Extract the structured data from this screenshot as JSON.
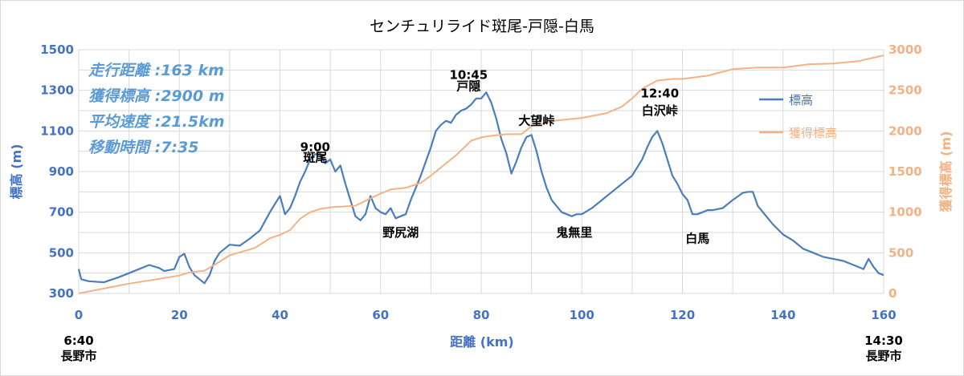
{
  "chart_data": {
    "type": "line",
    "title": "センチュリライド斑尾-戸隠-白馬",
    "xlabel": "距離 (km)",
    "ylabel_left": "標高 (m)",
    "ylabel_right": "獲得標高 (m)",
    "xlim": [
      0,
      160
    ],
    "ylim_left": [
      300,
      1500
    ],
    "ylim_right": [
      0,
      3000
    ],
    "x_ticks": [
      "0",
      "20",
      "40",
      "60",
      "80",
      "100",
      "120",
      "140",
      "160"
    ],
    "y_ticks_left": [
      "300",
      "500",
      "700",
      "900",
      "1100",
      "1300",
      "1500"
    ],
    "y_ticks_right": [
      "0",
      "500",
      "1000",
      "1500",
      "2000",
      "2500",
      "3000"
    ],
    "grid": true,
    "legend_position": "right",
    "series": [
      {
        "name": "標高",
        "axis": "left",
        "color": "#4a7ebb",
        "x": [
          0,
          0.5,
          2,
          5,
          8,
          10,
          12,
          14,
          16,
          17,
          19,
          20,
          21,
          22,
          23,
          24,
          25,
          26,
          27,
          28,
          30,
          32,
          34,
          36,
          38,
          39,
          40,
          41,
          42,
          43,
          44,
          45,
          46,
          47,
          48,
          49,
          50,
          51,
          52,
          53,
          54,
          55,
          56,
          57,
          58,
          59,
          60,
          61,
          62,
          63,
          64,
          65,
          66,
          67,
          68,
          69,
          70,
          71,
          72,
          73,
          74,
          75,
          76,
          77,
          78,
          79,
          80,
          81,
          82,
          83,
          84,
          85,
          86,
          87,
          88,
          89,
          90,
          91,
          92,
          93,
          94,
          95,
          96,
          97,
          98,
          99,
          100,
          102,
          104,
          106,
          108,
          110,
          112,
          113,
          114,
          115,
          116,
          117,
          118,
          119,
          120,
          121,
          122,
          123,
          124,
          125,
          126,
          128,
          130,
          132,
          133,
          134,
          135,
          136,
          138,
          140,
          142,
          144,
          146,
          148,
          150,
          152,
          154,
          156,
          157,
          158,
          159,
          160
        ],
        "values": [
          420,
          370,
          360,
          355,
          380,
          400,
          420,
          440,
          425,
          410,
          420,
          480,
          495,
          430,
          390,
          370,
          350,
          390,
          460,
          500,
          540,
          535,
          570,
          610,
          700,
          740,
          780,
          690,
          720,
          780,
          850,
          900,
          960,
          985,
          990,
          940,
          960,
          900,
          930,
          840,
          760,
          680,
          660,
          690,
          780,
          720,
          700,
          690,
          720,
          670,
          680,
          690,
          760,
          820,
          880,
          950,
          1020,
          1100,
          1130,
          1150,
          1140,
          1180,
          1200,
          1210,
          1230,
          1260,
          1260,
          1290,
          1240,
          1160,
          1060,
          990,
          890,
          950,
          1020,
          1070,
          1080,
          1000,
          900,
          820,
          760,
          730,
          700,
          690,
          680,
          690,
          690,
          720,
          760,
          800,
          840,
          880,
          960,
          1020,
          1070,
          1100,
          1040,
          960,
          880,
          840,
          790,
          760,
          690,
          690,
          700,
          710,
          710,
          720,
          760,
          795,
          800,
          800,
          730,
          700,
          640,
          590,
          560,
          520,
          500,
          480,
          470,
          460,
          440,
          420,
          470,
          430,
          400,
          390
        ]
      },
      {
        "name": "獲得標高",
        "axis": "right",
        "color": "#f4b183",
        "x": [
          0,
          5,
          10,
          15,
          20,
          22,
          25,
          28,
          30,
          35,
          38,
          40,
          42,
          44,
          46,
          48,
          50,
          55,
          60,
          62,
          65,
          68,
          70,
          72,
          75,
          78,
          80,
          82,
          85,
          88,
          90,
          95,
          100,
          105,
          108,
          110,
          112,
          115,
          118,
          120,
          125,
          130,
          135,
          140,
          145,
          150,
          155,
          160
        ],
        "values": [
          0,
          60,
          120,
          170,
          220,
          260,
          280,
          390,
          470,
          560,
          680,
          720,
          780,
          920,
          1000,
          1040,
          1060,
          1080,
          1230,
          1280,
          1300,
          1360,
          1450,
          1550,
          1700,
          1880,
          1920,
          1940,
          1960,
          1960,
          2060,
          2130,
          2160,
          2220,
          2300,
          2400,
          2520,
          2620,
          2640,
          2640,
          2680,
          2760,
          2780,
          2780,
          2820,
          2830,
          2860,
          2930
        ]
      }
    ],
    "stats": [
      "走行距離 :163 km",
      "獲得標高 :2900 m",
      "平均速度 :21.5km",
      "移動時間 :7:35"
    ],
    "annotations": [
      {
        "text": "9:00",
        "x": 47,
        "y": 1000
      },
      {
        "text": "斑尾",
        "x": 47,
        "y": 950
      },
      {
        "text": "10:45",
        "x": 77.5,
        "y": 1355
      },
      {
        "text": "戸隠",
        "x": 77.5,
        "y": 1300
      },
      {
        "text": "大望峠",
        "x": 91,
        "y": 1130
      },
      {
        "text": "12:40",
        "x": 115.5,
        "y": 1265
      },
      {
        "text": "白沢峠",
        "x": 115.5,
        "y": 1180
      },
      {
        "text": "野尻湖",
        "x": 64,
        "y": 580
      },
      {
        "text": "鬼無里",
        "x": 98.5,
        "y": 580
      },
      {
        "text": "白馬",
        "x": 123,
        "y": 550
      }
    ],
    "x_endpoints": {
      "start": {
        "time": "6:40",
        "place": "長野市"
      },
      "end": {
        "time": "14:30",
        "place": "長野市"
      }
    }
  }
}
